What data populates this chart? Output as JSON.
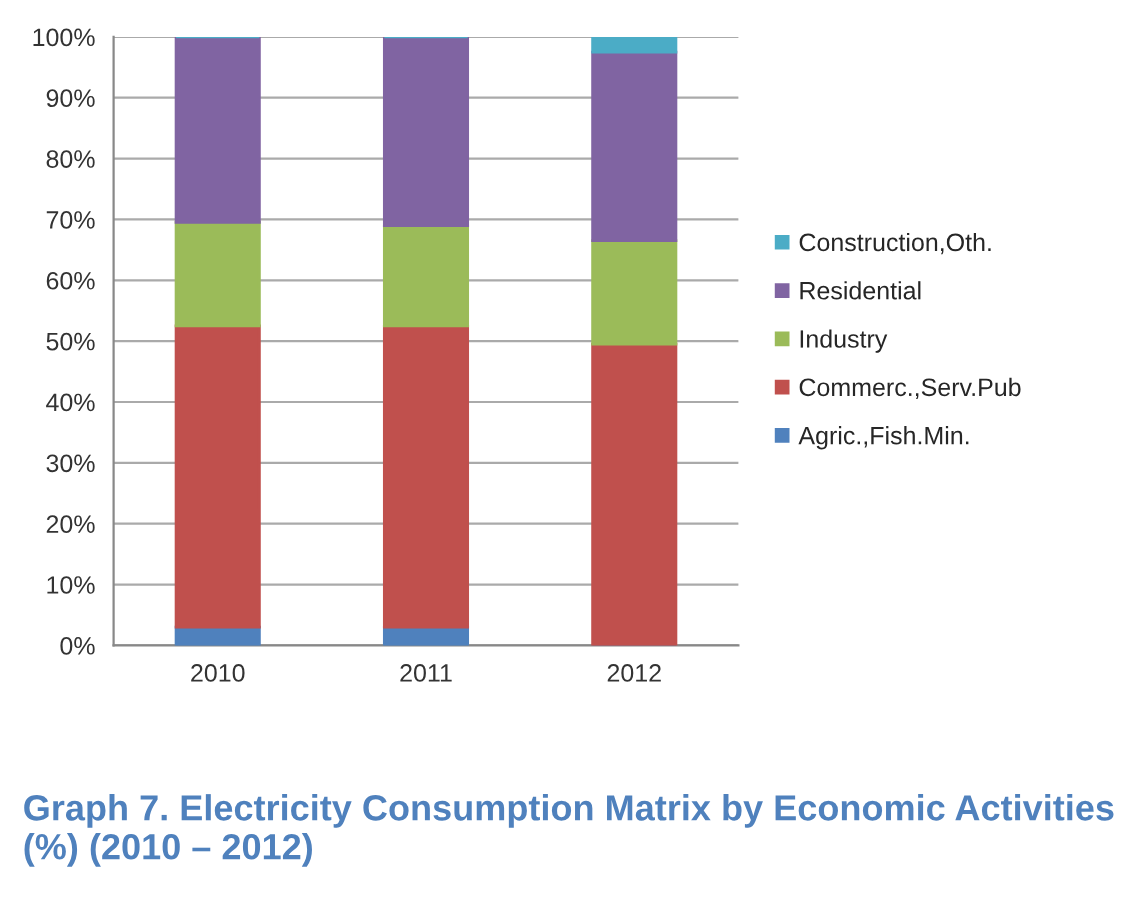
{
  "chart_data": {
    "type": "bar",
    "stacked": true,
    "title": "Graph 7. Electricity Consumption Matrix by Economic Activities (%) (2010 – 2012)",
    "categories": [
      "2010",
      "2011",
      "2012"
    ],
    "series": [
      {
        "name": "Agric.,Fish.Min.",
        "color": "#4f81bd",
        "values": [
          3,
          3,
          0
        ]
      },
      {
        "name": "Commerc.,Serv.Pub",
        "color": "#c0504d",
        "values": [
          49.5,
          49.5,
          49.5
        ]
      },
      {
        "name": "Industry",
        "color": "#9bbb59",
        "values": [
          17,
          16.5,
          17
        ]
      },
      {
        "name": "Residential",
        "color": "#8064a2",
        "values": [
          30.5,
          31,
          31
        ]
      },
      {
        "name": "Construction,Oth.",
        "color": "#4bacc6",
        "values": [
          0,
          0,
          2.5
        ]
      }
    ],
    "ylim": [
      0,
      100
    ],
    "yticks": [
      {
        "value": 0,
        "label": "0%"
      },
      {
        "value": 10,
        "label": "10%"
      },
      {
        "value": 20,
        "label": "20%"
      },
      {
        "value": 30,
        "label": "30%"
      },
      {
        "value": 40,
        "label": "40%"
      },
      {
        "value": 50,
        "label": "50%"
      },
      {
        "value": 60,
        "label": "60%"
      },
      {
        "value": 70,
        "label": "70%"
      },
      {
        "value": 80,
        "label": "80%"
      },
      {
        "value": 90,
        "label": "90%"
      },
      {
        "value": 100,
        "label": "100%"
      }
    ],
    "grid": "y",
    "legend": "right"
  }
}
